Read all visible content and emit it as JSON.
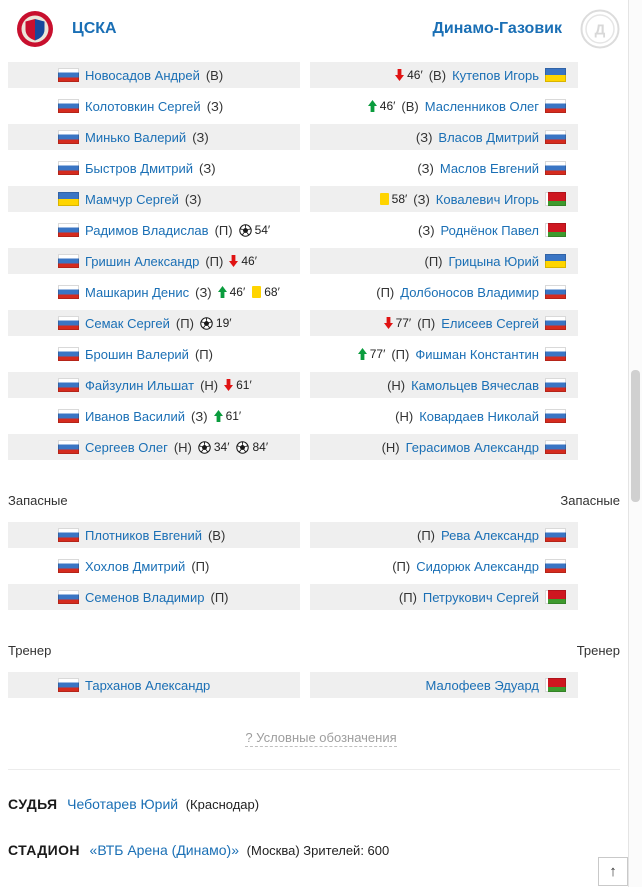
{
  "header": {
    "home_team": "ЦСКА",
    "away_team": "Динамо-Газовик",
    "home_logo_icon": "cska-crest-icon",
    "away_logo_icon": "dinamo-gazovik-crest-icon"
  },
  "labels": {
    "substitutes": "Запасные",
    "coach": "Тренер",
    "legend": "? Условные обозначения",
    "referee": "СУДЬЯ",
    "stadium": "СТАДИОН"
  },
  "lineups": {
    "home": [
      {
        "name": "Новосадов Андрей",
        "pos": "(В)",
        "flag": "ru",
        "events": []
      },
      {
        "name": "Колотовкин Сергей",
        "pos": "(З)",
        "flag": "ru",
        "events": []
      },
      {
        "name": "Минько Валерий",
        "pos": "(З)",
        "flag": "ru",
        "events": []
      },
      {
        "name": "Быстров Дмитрий",
        "pos": "(З)",
        "flag": "ru",
        "events": []
      },
      {
        "name": "Мамчур Сергей",
        "pos": "(З)",
        "flag": "ua",
        "events": []
      },
      {
        "name": "Радимов Владислав",
        "pos": "(П)",
        "flag": "ru",
        "events": [
          {
            "type": "goal",
            "minute": "54′"
          }
        ]
      },
      {
        "name": "Гришин Александр",
        "pos": "(П)",
        "flag": "ru",
        "events": [
          {
            "type": "sub_out",
            "minute": "46′"
          }
        ]
      },
      {
        "name": "Машкарин Денис",
        "pos": "(З)",
        "flag": "ru",
        "events": [
          {
            "type": "sub_in",
            "minute": "46′"
          },
          {
            "type": "yellow",
            "minute": "68′"
          }
        ]
      },
      {
        "name": "Семак Сергей",
        "pos": "(П)",
        "flag": "ru",
        "events": [
          {
            "type": "goal",
            "minute": "19′"
          }
        ]
      },
      {
        "name": "Брошин Валерий",
        "pos": "(П)",
        "flag": "ru",
        "events": []
      },
      {
        "name": "Файзулин Ильшат",
        "pos": "(Н)",
        "flag": "ru",
        "events": [
          {
            "type": "sub_out",
            "minute": "61′"
          }
        ]
      },
      {
        "name": "Иванов Василий",
        "pos": "(З)",
        "flag": "ru",
        "events": [
          {
            "type": "sub_in",
            "minute": "61′"
          }
        ]
      },
      {
        "name": "Сергеев Олег",
        "pos": "(Н)",
        "flag": "ru",
        "events": [
          {
            "type": "goal",
            "minute": "34′"
          },
          {
            "type": "goal",
            "minute": "84′"
          }
        ]
      }
    ],
    "away": [
      {
        "name": "Кутепов Игорь",
        "pos": "(В)",
        "flag": "ua",
        "events": [
          {
            "type": "sub_out",
            "minute": "46′"
          }
        ]
      },
      {
        "name": "Масленников Олег",
        "pos": "(В)",
        "flag": "ru",
        "events": [
          {
            "type": "sub_in",
            "minute": "46′"
          }
        ]
      },
      {
        "name": "Власов Дмитрий",
        "pos": "(З)",
        "flag": "ru",
        "events": []
      },
      {
        "name": "Маслов Евгений",
        "pos": "(З)",
        "flag": "ru",
        "events": []
      },
      {
        "name": "Ковалевич Игорь",
        "pos": "(З)",
        "flag": "by",
        "events": [
          {
            "type": "yellow",
            "minute": "58′"
          }
        ]
      },
      {
        "name": "Роднёнок Павел",
        "pos": "(З)",
        "flag": "by",
        "events": []
      },
      {
        "name": "Грицына Юрий",
        "pos": "(П)",
        "flag": "ua",
        "events": []
      },
      {
        "name": "Долбоносов Владимир",
        "pos": "(П)",
        "flag": "ru",
        "events": []
      },
      {
        "name": "Елисеев Сергей",
        "pos": "(П)",
        "flag": "ru",
        "events": [
          {
            "type": "sub_out",
            "minute": "77′"
          }
        ]
      },
      {
        "name": "Фишман Константин",
        "pos": "(П)",
        "flag": "ru",
        "events": [
          {
            "type": "sub_in",
            "minute": "77′"
          }
        ]
      },
      {
        "name": "Камольцев Вячеслав",
        "pos": "(Н)",
        "flag": "ru",
        "events": []
      },
      {
        "name": "Ковардаев Николай",
        "pos": "(Н)",
        "flag": "ru",
        "events": []
      },
      {
        "name": "Герасимов Александр",
        "pos": "(Н)",
        "flag": "ru",
        "events": []
      }
    ]
  },
  "substitutes": {
    "home": [
      {
        "name": "Плотников Евгений",
        "pos": "(В)",
        "flag": "ru",
        "events": []
      },
      {
        "name": "Хохлов Дмитрий",
        "pos": "(П)",
        "flag": "ru",
        "events": []
      },
      {
        "name": "Семенов Владимир",
        "pos": "(П)",
        "flag": "ru",
        "events": []
      }
    ],
    "away": [
      {
        "name": "Рева Александр",
        "pos": "(П)",
        "flag": "ru",
        "events": []
      },
      {
        "name": "Сидорюк Александр",
        "pos": "(П)",
        "flag": "ru",
        "events": []
      },
      {
        "name": "Петрукович Сергей",
        "pos": "(П)",
        "flag": "by",
        "events": []
      }
    ]
  },
  "coaches": {
    "home": {
      "name": "Тарханов Александр",
      "flag": "ru"
    },
    "away": {
      "name": "Малофеев Эдуард",
      "flag": "by"
    }
  },
  "referee": {
    "name": "Чеботарев Юрий",
    "detail": "(Краснодар)"
  },
  "stadium": {
    "name": "«ВТБ Арена (Динамо)»",
    "detail": "(Москва) Зрителей: 600"
  },
  "scroll_top_label": "↑",
  "colors": {
    "link": "#1a6fb5",
    "sub_in": "#0a9c3d",
    "sub_out": "#e01313",
    "yellow": "#ffd400",
    "row_alt": "#efefef"
  }
}
